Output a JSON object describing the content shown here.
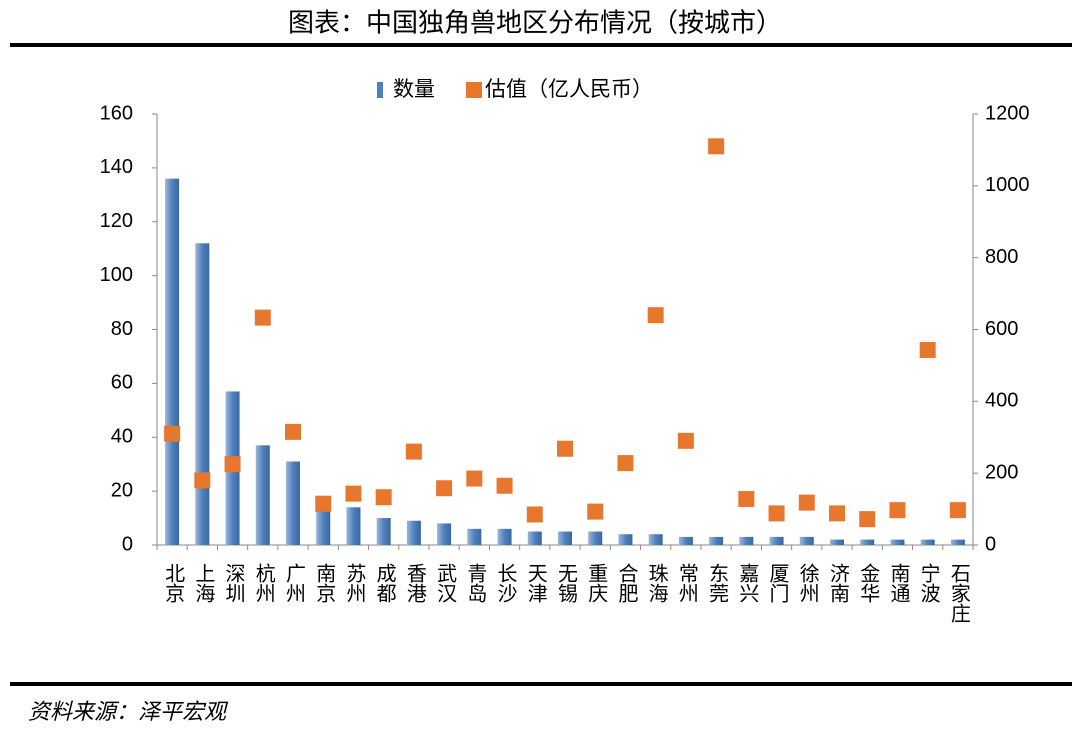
{
  "chart_data": {
    "type": "bar_scatter",
    "title": "图表：中国独角兽地区分布情况（按城市）",
    "source": "资料来源：泽平宏观",
    "categories": [
      "北京",
      "上海",
      "深圳",
      "杭州",
      "广州",
      "南京",
      "苏州",
      "成都",
      "香港",
      "武汉",
      "青岛",
      "长沙",
      "天津",
      "无锡",
      "重庆",
      "合肥",
      "珠海",
      "常州",
      "东莞",
      "嘉兴",
      "厦门",
      "徐州",
      "济南",
      "金华",
      "南通",
      "宁波",
      "石家庄"
    ],
    "series": [
      {
        "name": "数量",
        "type": "bar",
        "color": "#4f81bd",
        "values": [
          136,
          112,
          57,
          37,
          31,
          13,
          14,
          10,
          9,
          8,
          6,
          6,
          5,
          5,
          5,
          4,
          4,
          3,
          3,
          3,
          3,
          3,
          2,
          2,
          2,
          2,
          2
        ]
      },
      {
        "name": "估值（亿人民币）",
        "type": "scatter",
        "axis": "y2",
        "color": "#e8772e",
        "values": [
          310,
          180,
          225,
          633,
          315,
          115,
          143,
          133,
          260,
          158,
          185,
          165,
          85,
          268,
          93,
          228,
          640,
          290,
          1110,
          128,
          88,
          118,
          88,
          72,
          97,
          543,
          97
        ]
      }
    ],
    "ylim": [
      0,
      160
    ],
    "yticks": [
      0,
      20,
      40,
      60,
      80,
      100,
      120,
      140,
      160
    ],
    "y2lim": [
      0,
      1200
    ],
    "y2ticks": [
      0,
      200,
      400,
      600,
      800,
      1000,
      1200
    ],
    "legend": "top"
  }
}
